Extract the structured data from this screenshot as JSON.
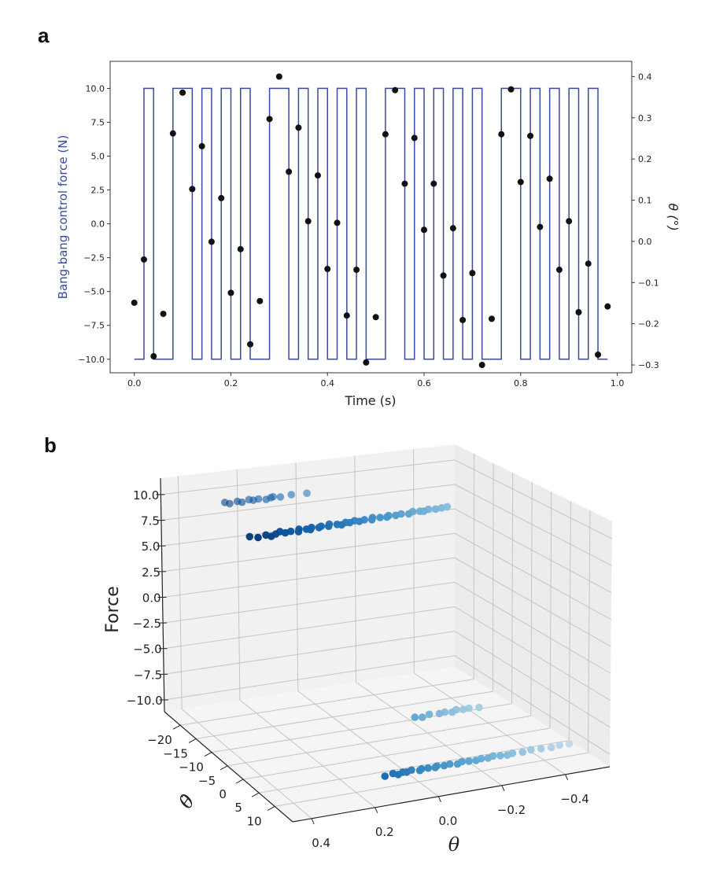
{
  "chart_data": [
    {
      "panel_label": "a",
      "type": "line+scatter",
      "xlabel": "Time (s)",
      "ylabel": "Bang-bang control force (N)",
      "ylabel_right": "θ (°)",
      "xlim": [
        -0.05,
        1.03
      ],
      "ylim": [
        -11.0,
        12.0
      ],
      "ylim_right": [
        -0.319,
        0.437
      ],
      "xticks": [
        "0.0",
        "0.2",
        "0.4",
        "0.6",
        "0.8",
        "1.0"
      ],
      "yticks": [
        "10.0",
        "7.5",
        "5.0",
        "2.5",
        "0.0",
        "−2.5",
        "−5.0",
        "−7.5",
        "−10.0"
      ],
      "yticks_right": [
        "0.4",
        "0.3",
        "0.2",
        "0.1",
        "0.0",
        "−0.1",
        "−0.2",
        "−0.3"
      ],
      "grid": false,
      "colors": {
        "force_line": "#3a4a9e",
        "theta_points": "#111111",
        "left_label": "#3a4a9e"
      },
      "x": [
        0.0,
        0.02,
        0.04,
        0.06,
        0.08,
        0.1,
        0.12,
        0.14,
        0.16,
        0.18,
        0.2,
        0.22,
        0.24,
        0.26,
        0.28,
        0.3,
        0.32,
        0.34,
        0.36,
        0.38,
        0.4,
        0.42,
        0.44,
        0.46,
        0.48,
        0.5,
        0.52,
        0.54,
        0.56,
        0.58,
        0.6,
        0.62,
        0.64,
        0.66,
        0.68,
        0.7,
        0.72,
        0.74,
        0.76,
        0.78,
        0.8,
        0.82,
        0.84,
        0.86,
        0.88,
        0.9,
        0.92,
        0.94,
        0.96,
        0.98
      ],
      "series": [
        {
          "kind": "step",
          "axis": "left",
          "values": [
            -10,
            10,
            -10,
            -10,
            10,
            10,
            -10,
            10,
            -10,
            10,
            -10,
            10,
            -10,
            -10,
            10,
            10,
            -10,
            10,
            -10,
            10,
            -10,
            10,
            -10,
            10,
            -10,
            -10,
            10,
            10,
            -10,
            10,
            -10,
            10,
            -10,
            10,
            -10,
            10,
            -10,
            -10,
            10,
            10,
            -10,
            10,
            -10,
            10,
            -10,
            10,
            -10,
            10,
            -10,
            -10
          ]
        },
        {
          "kind": "scatter",
          "axis": "right",
          "values": [
            -0.149,
            -0.044,
            -0.279,
            -0.176,
            0.262,
            0.361,
            0.127,
            0.231,
            -0.001,
            0.105,
            -0.125,
            -0.019,
            -0.25,
            -0.145,
            0.297,
            0.4,
            0.169,
            0.276,
            0.049,
            0.16,
            -0.067,
            0.045,
            -0.18,
            -0.069,
            -0.294,
            -0.184,
            0.26,
            0.367,
            0.14,
            0.251,
            0.028,
            0.14,
            -0.083,
            0.032,
            -0.191,
            -0.077,
            -0.3,
            -0.188,
            0.26,
            0.369,
            0.144,
            0.256,
            0.035,
            0.152,
            -0.069,
            0.049,
            -0.172,
            -0.054,
            -0.275,
            -0.158
          ]
        }
      ]
    },
    {
      "panel_label": "b",
      "type": "scatter3d",
      "xlabel": "θ",
      "ylabel": "θ̇",
      "zlabel": "Force",
      "xlim": [
        -0.54,
        0.46
      ],
      "ylim": [
        -25.0,
        15.7
      ],
      "zlim": [
        -11.15,
        11.6
      ],
      "xticks": [
        "0.4",
        "0.2",
        "0.0",
        "−0.2",
        "−0.4"
      ],
      "xtick_values": [
        0.4,
        0.2,
        0.0,
        -0.2,
        -0.4
      ],
      "yticks": [
        "−20",
        "−15",
        "−10",
        "−5",
        "0",
        "5",
        "10"
      ],
      "ytick_values": [
        -20,
        -15,
        -10,
        -5,
        0,
        5,
        10
      ],
      "zticks": [
        "10.0",
        "7.5",
        "5.0",
        "2.5",
        "0.0",
        "−2.5",
        "−5.0",
        "−7.5",
        "−10.0"
      ],
      "ztick_values": [
        10,
        7.5,
        5,
        2.5,
        0,
        -2.5,
        -5,
        -7.5,
        -10
      ],
      "grid": true,
      "colormap": "Blues",
      "points": [
        [
          0.35,
          -7.5,
          10
        ],
        [
          0.33,
          -6.8,
          10
        ],
        [
          0.3,
          -7.2,
          10
        ],
        [
          0.29,
          -6.5,
          10
        ],
        [
          0.27,
          -7.0,
          10
        ],
        [
          0.25,
          -7.6,
          10
        ],
        [
          0.24,
          -6.9,
          10
        ],
        [
          0.22,
          -7.1,
          10
        ],
        [
          0.2,
          -6.6,
          10
        ],
        [
          0.19,
          -7.4,
          10
        ],
        [
          0.17,
          -7.0,
          10
        ],
        [
          0.16,
          -6.7,
          10
        ],
        [
          0.15,
          -7.3,
          10
        ],
        [
          0.13,
          -6.9,
          10
        ],
        [
          0.12,
          -7.2,
          10
        ],
        [
          0.1,
          -6.8,
          10
        ],
        [
          0.09,
          -7.5,
          10
        ],
        [
          0.07,
          -7.0,
          10
        ],
        [
          0.06,
          -6.6,
          10
        ],
        [
          0.04,
          -7.2,
          10
        ],
        [
          0.03,
          -6.9,
          10
        ],
        [
          0.01,
          -7.3,
          10
        ],
        [
          0.0,
          -6.8,
          10
        ],
        [
          -0.02,
          -7.1,
          10
        ],
        [
          -0.04,
          -6.7,
          10
        ],
        [
          -0.05,
          -7.4,
          10
        ],
        [
          -0.07,
          -7.0,
          10
        ],
        [
          -0.09,
          -6.8,
          10
        ],
        [
          -0.1,
          -7.2,
          10
        ],
        [
          -0.12,
          -6.9,
          10
        ],
        [
          -0.14,
          -7.1,
          10
        ],
        [
          -0.16,
          -6.7,
          10
        ],
        [
          -0.18,
          -7.3,
          10
        ],
        [
          -0.2,
          -7.0,
          10
        ],
        [
          -0.21,
          -6.8,
          10
        ],
        [
          -0.23,
          -7.2,
          10
        ],
        [
          -0.25,
          -6.9,
          10
        ],
        [
          -0.27,
          -7.0,
          10
        ],
        [
          -0.29,
          -7.1,
          10
        ],
        [
          0.3,
          -19.8,
          10
        ],
        [
          0.29,
          -19.2,
          10
        ],
        [
          0.26,
          -19.6,
          10
        ],
        [
          0.25,
          -19.1,
          10
        ],
        [
          0.22,
          -19.7,
          10
        ],
        [
          0.21,
          -19.3,
          10
        ],
        [
          0.19,
          -19.5,
          10
        ],
        [
          0.17,
          -19.0,
          10
        ],
        [
          0.15,
          -19.4,
          10
        ],
        [
          0.14,
          -19.6,
          10
        ],
        [
          0.12,
          -19.2,
          10
        ],
        [
          0.08,
          -19.5,
          10
        ],
        [
          0.03,
          -19.3,
          10
        ],
        [
          0.11,
          10.2,
          -10
        ],
        [
          0.08,
          9.8,
          -10
        ],
        [
          0.07,
          10.4,
          -10
        ],
        [
          0.05,
          9.9,
          -10
        ],
        [
          0.04,
          10.1,
          -10
        ],
        [
          0.02,
          9.7,
          -10
        ],
        [
          0.0,
          10.3,
          -10
        ],
        [
          -0.01,
          9.9,
          -10
        ],
        [
          -0.03,
          10.0,
          -10
        ],
        [
          -0.05,
          10.2,
          -10
        ],
        [
          -0.06,
          9.8,
          -10
        ],
        [
          -0.08,
          10.1,
          -10
        ],
        [
          -0.1,
          9.9,
          -10
        ],
        [
          -0.12,
          10.3,
          -10
        ],
        [
          -0.14,
          9.8,
          -10
        ],
        [
          -0.16,
          10.0,
          -10
        ],
        [
          -0.18,
          10.2,
          -10
        ],
        [
          -0.2,
          9.9,
          -10
        ],
        [
          -0.22,
          10.1,
          -10
        ],
        [
          -0.24,
          9.7,
          -10
        ],
        [
          -0.26,
          10.0,
          -10
        ],
        [
          -0.28,
          10.2,
          -10
        ],
        [
          -0.3,
          9.9,
          -10
        ],
        [
          -0.33,
          10.1,
          -10
        ],
        [
          -0.36,
          9.8,
          -10
        ],
        [
          -0.39,
          10.0,
          -10
        ],
        [
          -0.42,
          10.2,
          -10
        ],
        [
          -0.45,
          9.9,
          -10
        ],
        [
          -0.48,
          10.0,
          -10
        ],
        [
          -0.18,
          -6.9,
          -10
        ],
        [
          -0.2,
          -6.5,
          -10
        ],
        [
          -0.23,
          -7.1,
          -10
        ],
        [
          -0.26,
          -6.8,
          -10
        ],
        [
          -0.28,
          -7.0,
          -10
        ],
        [
          -0.3,
          -6.6,
          -10
        ],
        [
          -0.32,
          -7.2,
          -10
        ],
        [
          -0.34,
          -6.9,
          -10
        ],
        [
          -0.36,
          -7.0,
          -10
        ],
        [
          -0.39,
          -6.7,
          -10
        ]
      ]
    }
  ]
}
